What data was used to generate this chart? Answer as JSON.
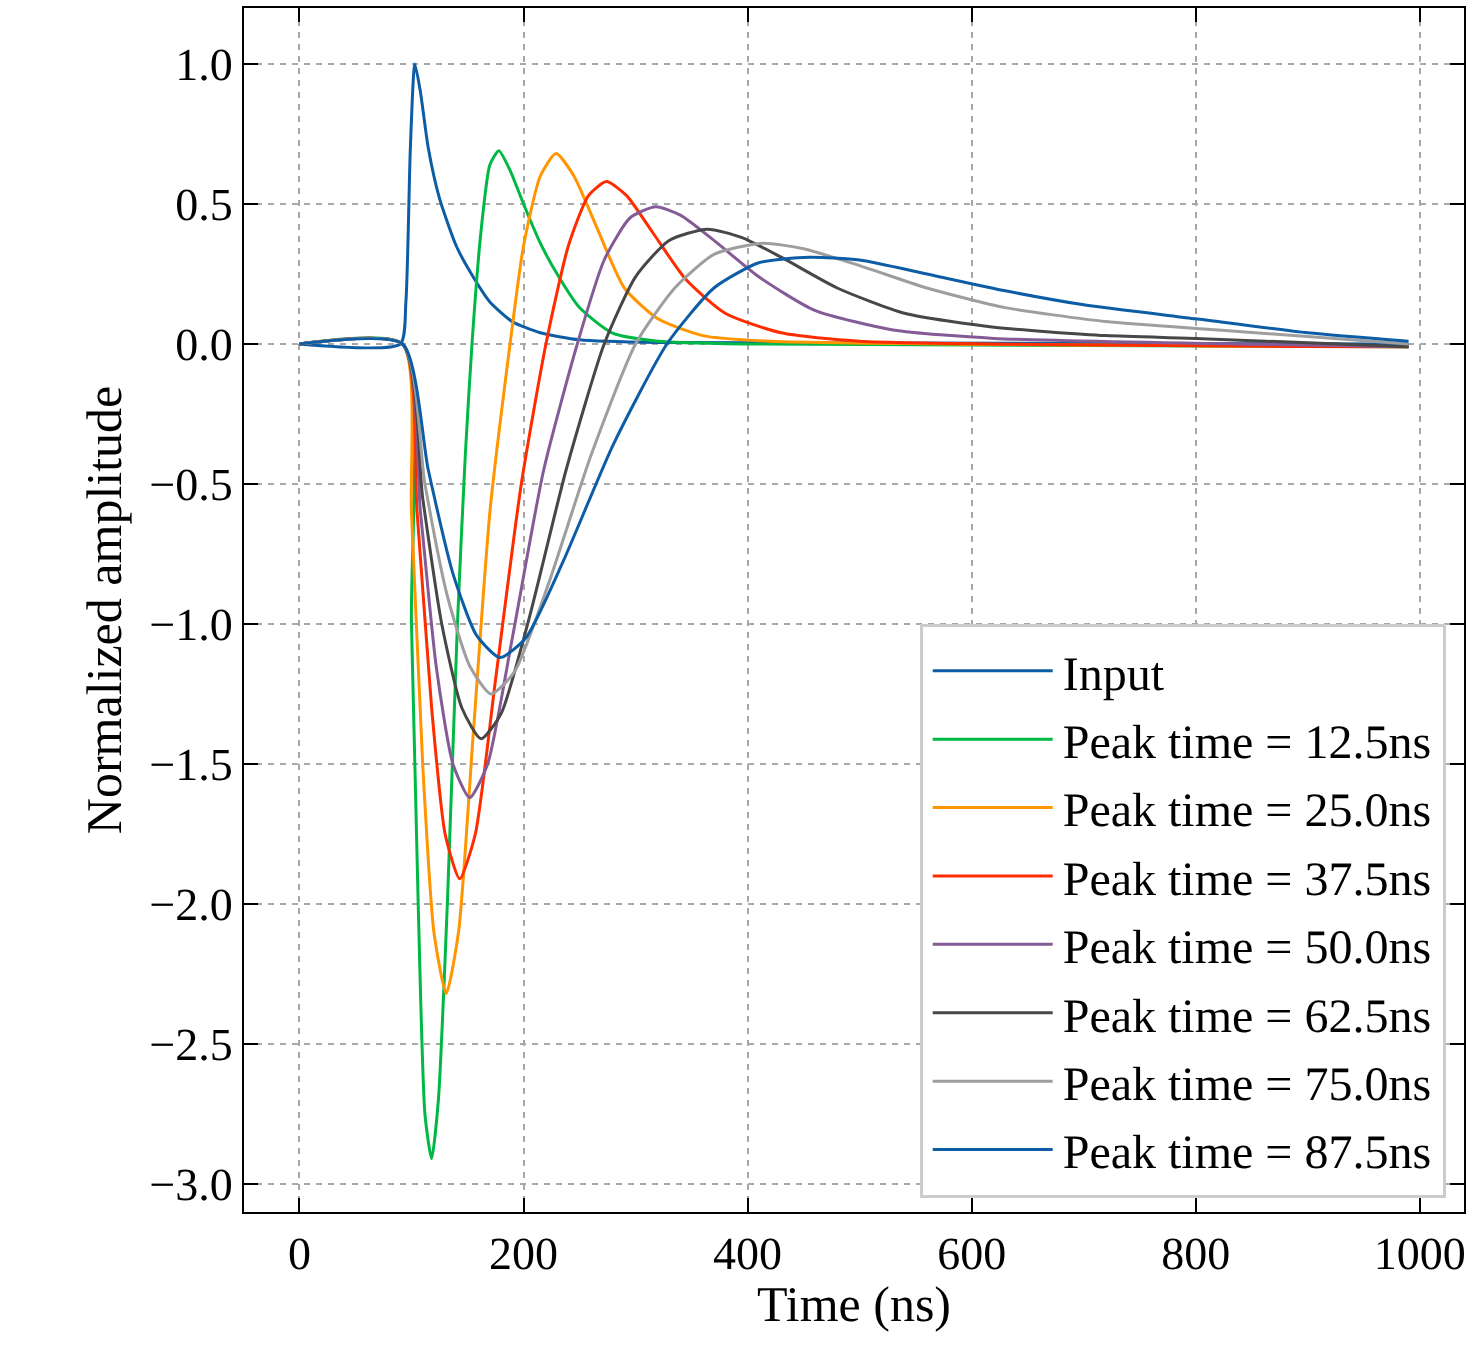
{
  "chart_data": {
    "type": "line",
    "xlabel": "Time (ns)",
    "ylabel": "Normalized amplitude",
    "xlim": [
      -49.5,
      1039.5
    ],
    "xticks": [
      0,
      200,
      400,
      600,
      800,
      1000
    ],
    "ylim": [
      -3.1,
      1.2
    ],
    "yticks": [
      {
        "value": -3.0,
        "label": "−3.0"
      },
      {
        "value": -2.5,
        "label": "−2.5"
      },
      {
        "value": -2.0,
        "label": "−2.0"
      },
      {
        "value": -1.5,
        "label": "−1.5"
      },
      {
        "value": -1.0,
        "label": "−1.0"
      },
      {
        "value": -0.5,
        "label": "−0.5"
      },
      {
        "value": 0.0,
        "label": "0.0"
      },
      {
        "value": 0.5,
        "label": "0.5"
      },
      {
        "value": 1.0,
        "label": "1.0"
      }
    ],
    "grid": true,
    "legend": "bottom right",
    "line_style": "solid",
    "series": [
      {
        "name": "Input",
        "color": "#0c5da5",
        "x": [
          0,
          90,
          95,
          99,
          103,
          108,
          115,
          125,
          140,
          155,
          170,
          190,
          215,
          250,
          320,
          990
        ],
        "values": [
          0,
          0,
          0.15,
          0.7,
          1.0,
          0.9,
          0.7,
          0.52,
          0.35,
          0.24,
          0.15,
          0.08,
          0.04,
          0.015,
          0.005,
          0
        ]
      },
      {
        "name": "Peak time = 12.5ns",
        "color": "#00b945",
        "x": [
          0,
          92,
          100,
          106,
          112,
          118,
          124,
          132,
          141,
          148,
          154,
          162,
          170,
          178,
          188,
          200,
          215,
          230,
          250,
          279,
          320,
          400,
          990
        ],
        "values": [
          0,
          0,
          -1.0,
          -2.0,
          -2.75,
          -2.91,
          -2.7,
          -2.0,
          -1.0,
          -0.4,
          0,
          0.4,
          0.64,
          0.69,
          0.62,
          0.5,
          0.36,
          0.25,
          0.13,
          0.04,
          0.01,
          0,
          -0.01
        ]
      },
      {
        "name": "Peak time = 25.0ns",
        "color": "#ff9500",
        "x": [
          0,
          92,
          100,
          110,
          120,
          131,
          142,
          155,
          170,
          188,
          200,
          215,
          229,
          245,
          265,
          290,
          320,
          360,
          420,
          990
        ],
        "values": [
          0,
          0,
          -0.6,
          -1.5,
          -2.1,
          -2.32,
          -2.1,
          -1.4,
          -0.6,
          0,
          0.35,
          0.6,
          0.68,
          0.6,
          0.42,
          0.2,
          0.09,
          0.03,
          0.01,
          -0.01
        ]
      },
      {
        "name": "Peak time = 37.5ns",
        "color": "#ff2c00",
        "x": [
          0,
          92,
          105,
          118,
          130,
          143,
          157,
          175,
          198,
          220,
          240,
          258,
          274,
          292,
          315,
          345,
          380,
          430,
          500,
          990
        ],
        "values": [
          0,
          0,
          -0.6,
          -1.3,
          -1.75,
          -1.91,
          -1.75,
          -1.2,
          -0.5,
          0,
          0.35,
          0.53,
          0.58,
          0.53,
          0.4,
          0.23,
          0.11,
          0.04,
          0.01,
          -0.01
        ]
      },
      {
        "name": "Peak time = 50.0ns",
        "color": "#845b97",
        "x": [
          0,
          92,
          108,
          122,
          137,
          152,
          168,
          190,
          218,
          248,
          272,
          295,
          318,
          340,
          370,
          410,
          460,
          530,
          620,
          990
        ],
        "values": [
          0,
          0,
          -0.6,
          -1.15,
          -1.5,
          -1.62,
          -1.5,
          -1.05,
          -0.45,
          0,
          0.3,
          0.45,
          0.49,
          0.46,
          0.37,
          0.24,
          0.12,
          0.05,
          0.02,
          -0.01
        ]
      },
      {
        "name": "Peak time = 62.5ns",
        "color": "#474747",
        "x": [
          0,
          92,
          110,
          127,
          145,
          162,
          180,
          205,
          238,
          272,
          300,
          330,
          364,
          395,
          430,
          480,
          540,
          620,
          720,
          800,
          990
        ],
        "values": [
          0,
          0,
          -0.55,
          -1.0,
          -1.3,
          -1.41,
          -1.32,
          -0.98,
          -0.45,
          0,
          0.24,
          0.37,
          0.41,
          0.38,
          0.31,
          0.2,
          0.11,
          0.06,
          0.03,
          0.02,
          -0.01
        ]
      },
      {
        "name": "Peak time = 75.0ns",
        "color": "#9e9e9e",
        "x": [
          0,
          92,
          112,
          132,
          152,
          171,
          192,
          222,
          260,
          300,
          335,
          370,
          413,
          450,
          500,
          560,
          630,
          720,
          820,
          990
        ],
        "values": [
          0,
          0,
          -0.5,
          -0.9,
          -1.15,
          -1.25,
          -1.17,
          -0.86,
          -0.4,
          0,
          0.2,
          0.32,
          0.36,
          0.34,
          0.28,
          0.2,
          0.13,
          0.08,
          0.05,
          0
        ]
      },
      {
        "name": "Peak time = 87.5ns",
        "color": "#0c5da5",
        "x": [
          0,
          92,
          115,
          137,
          158,
          179,
          202,
          235,
          280,
          328,
          370,
          410,
          455,
          500,
          560,
          630,
          700,
          800,
          900,
          990
        ],
        "values": [
          0,
          0,
          -0.45,
          -0.82,
          -1.04,
          -1.12,
          -1.05,
          -0.78,
          -0.36,
          0,
          0.2,
          0.29,
          0.31,
          0.3,
          0.25,
          0.19,
          0.14,
          0.09,
          0.04,
          0.01
        ]
      }
    ]
  }
}
